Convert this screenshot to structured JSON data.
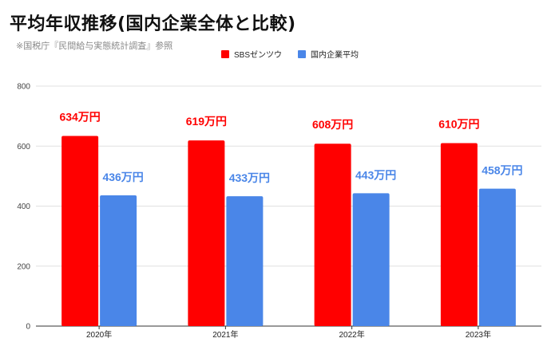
{
  "title": "平均年収推移(国内企業全体と比較)",
  "subtitle": "※国税庁『民間給与実態統計調査』参照",
  "colors": {
    "sbs": "#ff0000",
    "national": "#4a86e8",
    "grid": "#e0e0e0",
    "axis": "#333333"
  },
  "chart_data": {
    "type": "bar",
    "categories": [
      "2020年",
      "2021年",
      "2022年",
      "2023年"
    ],
    "series": [
      {
        "name": "SBSゼンツウ",
        "values": [
          634,
          619,
          608,
          610
        ],
        "labels": [
          "634万円",
          "619万円",
          "608万円",
          "610万円"
        ]
      },
      {
        "name": "国内企業平均",
        "values": [
          436,
          433,
          443,
          458
        ],
        "labels": [
          "436万円",
          "433万円",
          "443万円",
          "458万円"
        ]
      }
    ],
    "ylim": [
      0,
      800
    ],
    "yticks": [
      "0",
      "200",
      "400",
      "600",
      "800"
    ],
    "grid": true,
    "legend_position": "top-center"
  }
}
